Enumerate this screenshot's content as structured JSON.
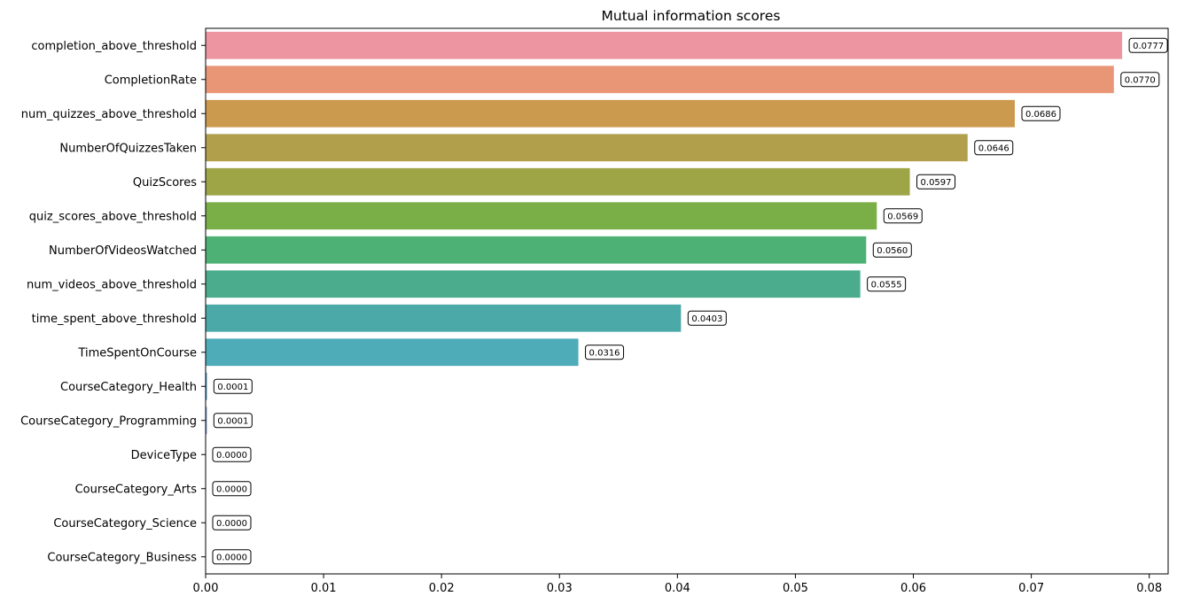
{
  "chart_data": {
    "type": "bar",
    "orientation": "horizontal",
    "title": "Mutual information scores",
    "xlabel": "",
    "ylabel": "",
    "xlim": [
      0,
      0.0816
    ],
    "xticks": [
      "0.00",
      "0.01",
      "0.02",
      "0.03",
      "0.04",
      "0.05",
      "0.06",
      "0.07",
      "0.08"
    ],
    "xtick_values": [
      0,
      0.01,
      0.02,
      0.03,
      0.04,
      0.05,
      0.06,
      0.07,
      0.08
    ],
    "grid": false,
    "categories": [
      "completion_above_threshold",
      "CompletionRate",
      "num_quizzes_above_threshold",
      "NumberOfQuizzesTaken",
      "QuizScores",
      "quiz_scores_above_threshold",
      "NumberOfVideosWatched",
      "num_videos_above_threshold",
      "time_spent_above_threshold",
      "TimeSpentOnCourse",
      "CourseCategory_Health",
      "CourseCategory_Programming",
      "DeviceType",
      "CourseCategory_Arts",
      "CourseCategory_Science",
      "CourseCategory_Business"
    ],
    "values": [
      0.0777,
      0.077,
      0.0686,
      0.0646,
      0.0597,
      0.0569,
      0.056,
      0.0555,
      0.0403,
      0.0316,
      0.0001,
      0.0001,
      0.0,
      0.0,
      0.0,
      0.0
    ],
    "value_labels": [
      "0.0777",
      "0.0770",
      "0.0686",
      "0.0646",
      "0.0597",
      "0.0569",
      "0.0560",
      "0.0555",
      "0.0403",
      "0.0316",
      "0.0001",
      "0.0001",
      "0.0000",
      "0.0000",
      "0.0000",
      "0.0000"
    ],
    "colors": [
      "#ED95A1",
      "#E89676",
      "#CC9A4E",
      "#B19F4C",
      "#9DA546",
      "#7AAE47",
      "#4DB074",
      "#4AAC8D",
      "#4BA9A8",
      "#4EABB8",
      "#5297C4",
      "#8AA2D0",
      "#B3A6D6",
      "#D19BD6",
      "#E79BC8",
      "#EC95B0"
    ]
  }
}
